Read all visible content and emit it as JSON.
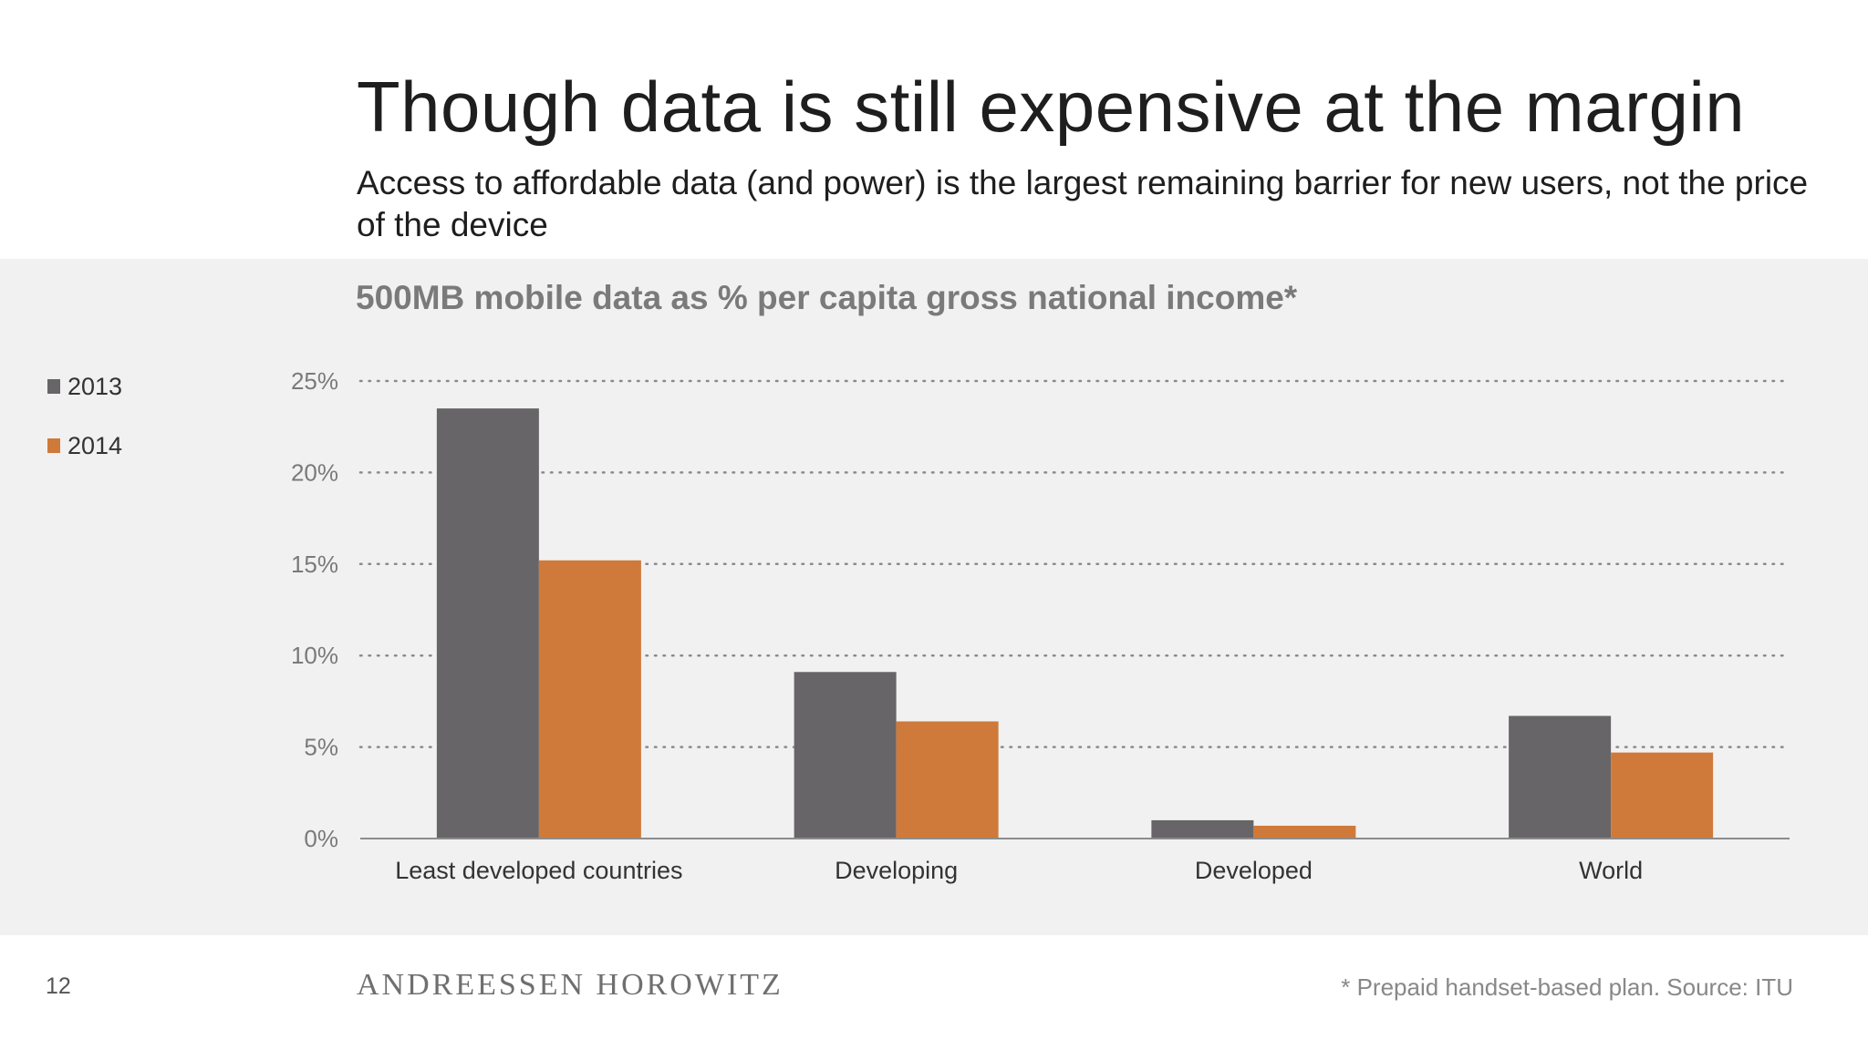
{
  "slide": {
    "title": "Though data is still expensive at the margin",
    "subtitle": "Access to affordable data (and power) is the largest remaining barrier for new users, not the price of the device",
    "page_number": "12",
    "brand": "ANDREESSEN HOROWITZ",
    "footnote": "* Prepaid handset-based plan. Source: ITU"
  },
  "colors": {
    "series_2013": "#676567",
    "series_2014": "#cf7a3a",
    "gridline": "#8a8a8a",
    "axis_text": "#7a7a7a"
  },
  "chart_data": {
    "type": "bar",
    "title": "500MB mobile data as % per capita gross national income*",
    "xlabel": "",
    "ylabel": "",
    "categories": [
      "Least developed countries",
      "Developing",
      "Developed",
      "World"
    ],
    "series": [
      {
        "name": "2013",
        "values": [
          23.5,
          9.1,
          1.0,
          6.7
        ]
      },
      {
        "name": "2014",
        "values": [
          15.2,
          6.4,
          0.7,
          4.7
        ]
      }
    ],
    "ylim": [
      0,
      25
    ],
    "yticks": [
      0,
      5,
      10,
      15,
      20,
      25
    ],
    "ytick_labels": [
      "0%",
      "5%",
      "10%",
      "15%",
      "20%",
      "25%"
    ],
    "grid": "horizontal dotted",
    "legend_position": "left"
  }
}
